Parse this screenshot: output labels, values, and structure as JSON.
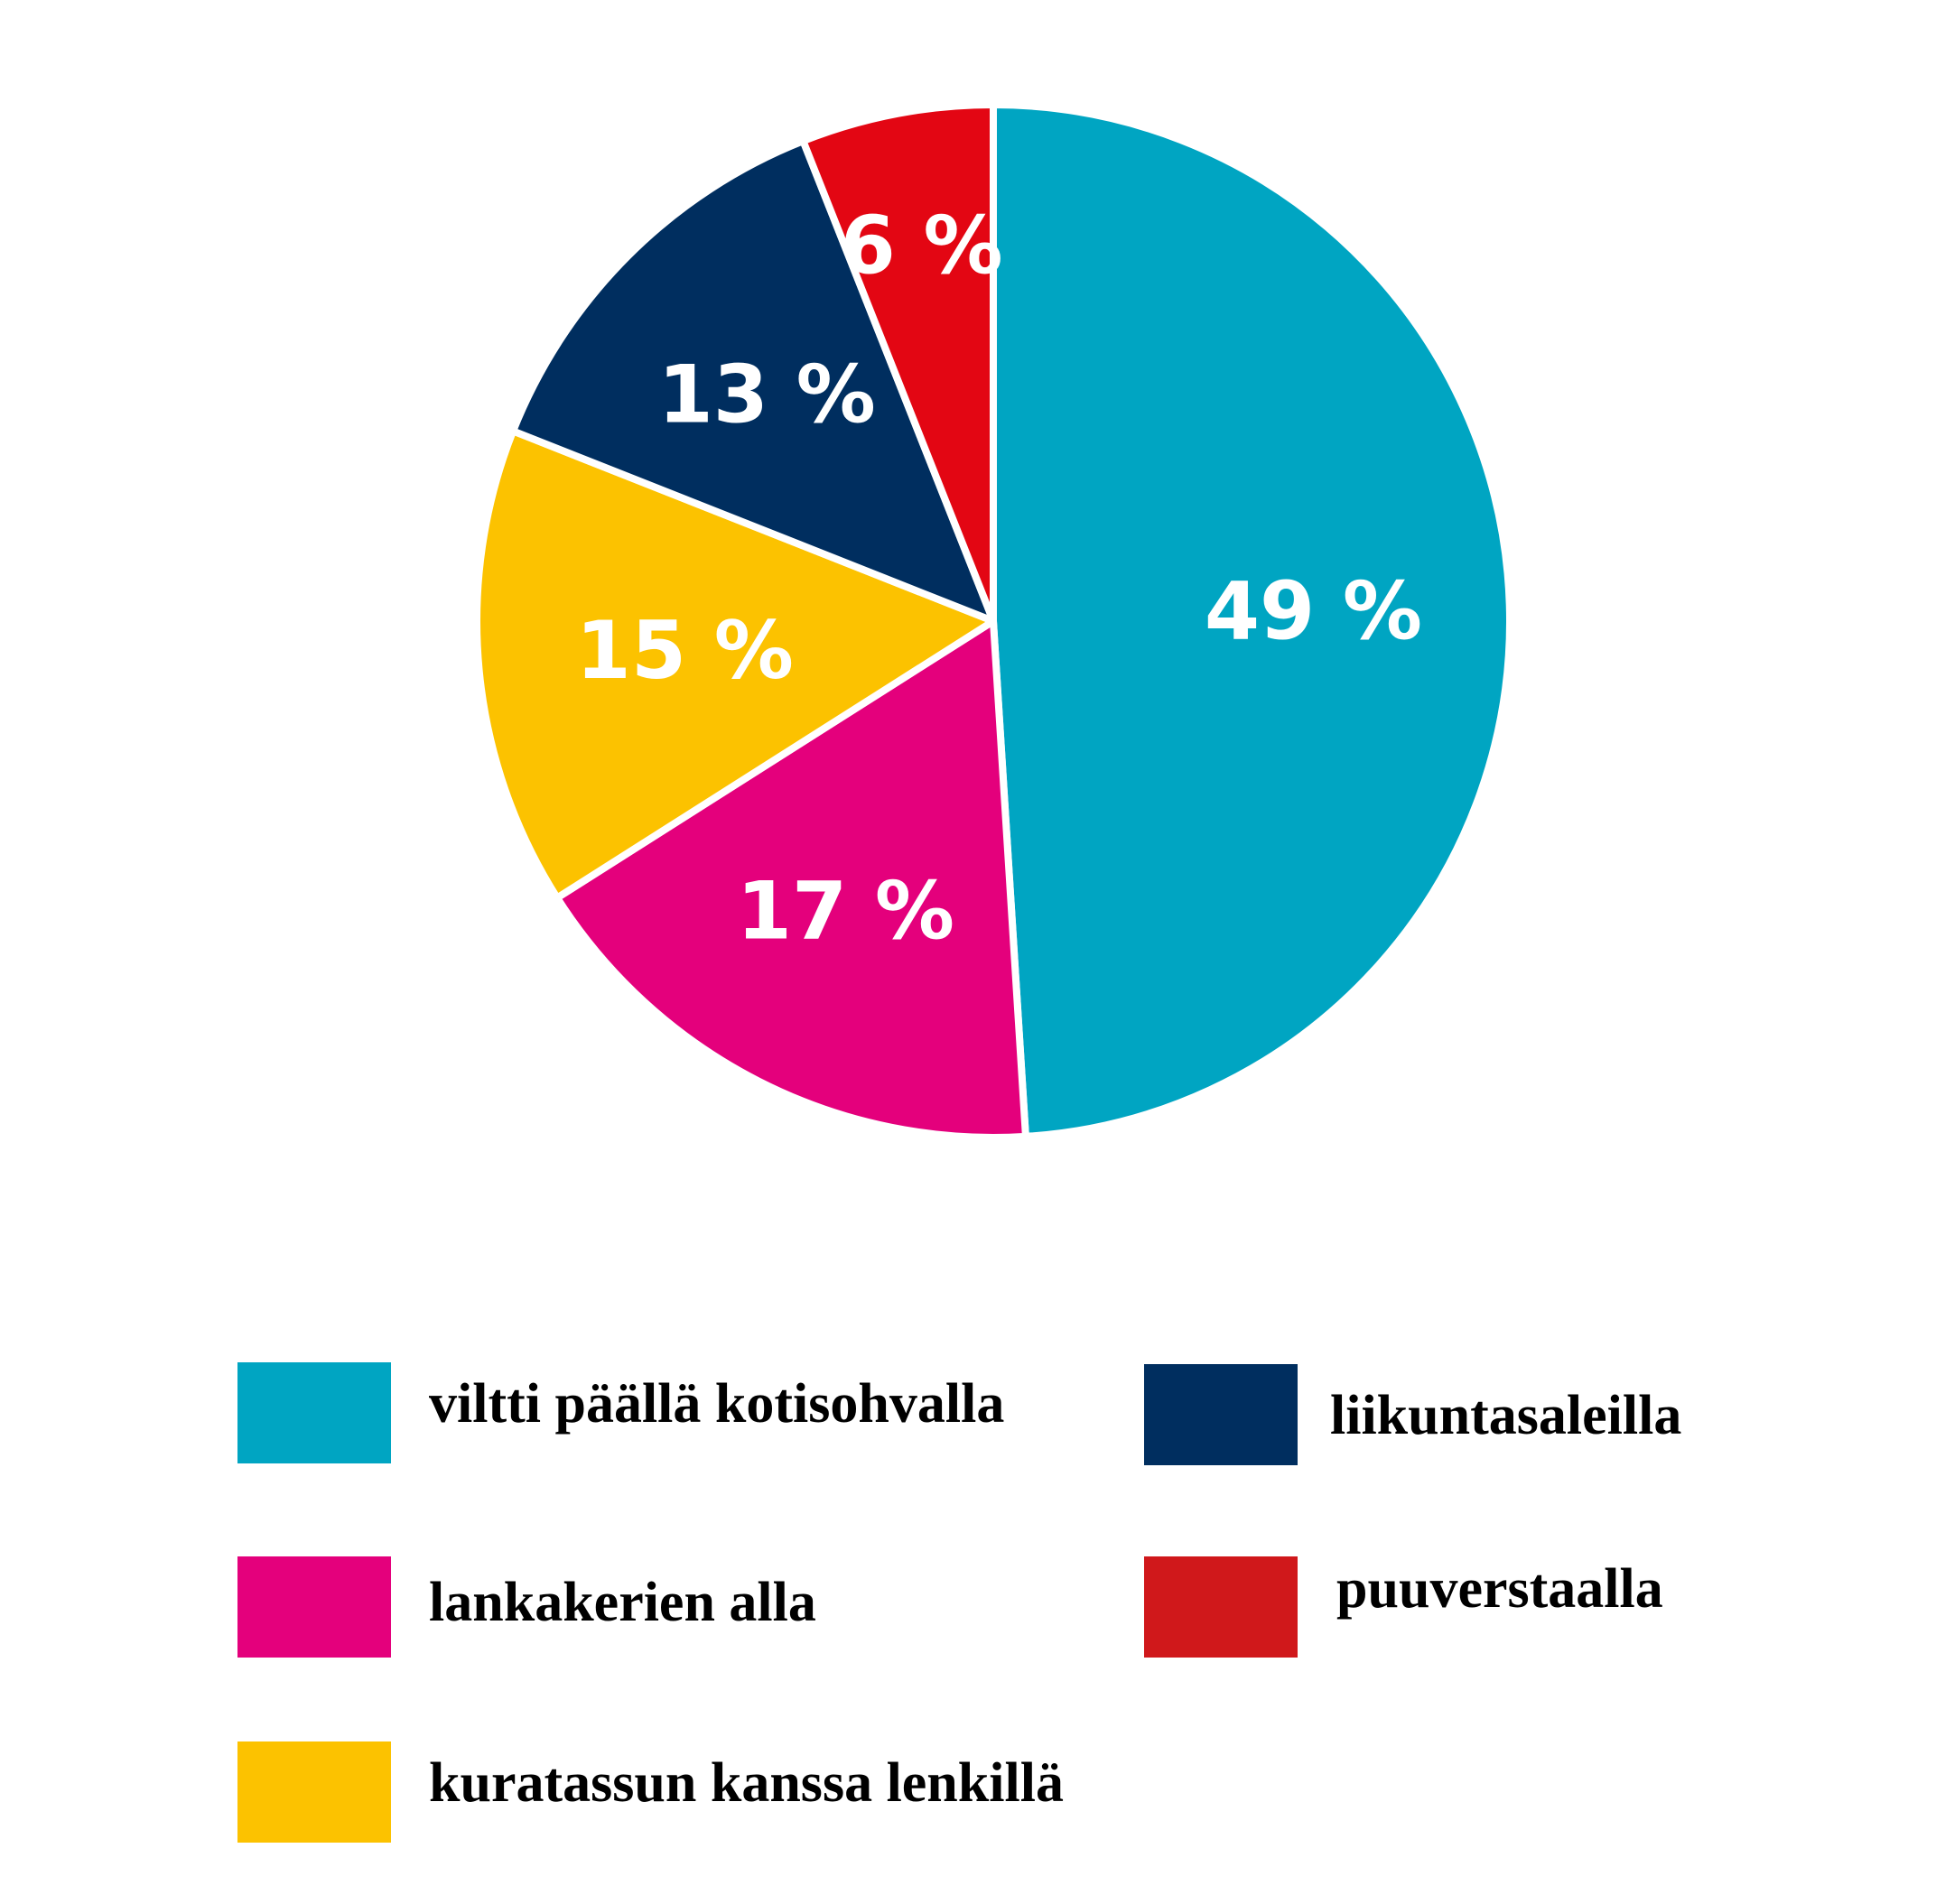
{
  "chart_data": {
    "type": "pie",
    "start_angle_deg": 0,
    "direction": "clockwise",
    "slices": [
      {
        "label": "viltti päällä kotisohvalla",
        "value": 49,
        "value_label": "49 %",
        "color": "#00a5c2"
      },
      {
        "label": "lankakerien alla",
        "value": 17,
        "value_label": "17 %",
        "color": "#e4007c"
      },
      {
        "label": "kuratassun kanssa lenkillä",
        "value": 15,
        "value_label": "15 %",
        "color": "#fcc200"
      },
      {
        "label": "liikuntasaleilla",
        "value": 13,
        "value_label": "13 %",
        "color": "#002e5f"
      },
      {
        "label": "puuverstaalla",
        "value": 6,
        "value_label": "6 %",
        "color": "#e30613"
      }
    ],
    "legend": {
      "placement": "bottom",
      "entries": [
        {
          "label": "viltti päällä kotisohvalla",
          "color": "#00a5c2"
        },
        {
          "label": "liikuntasaleilla",
          "color": "#002e5f"
        },
        {
          "label": "lankakerien alla",
          "color": "#e4007c"
        },
        {
          "label": "puuverstaalla",
          "color": "#d0181b"
        },
        {
          "label": "kuratassun kanssa lenkillä",
          "color": "#fcc200"
        }
      ]
    }
  }
}
